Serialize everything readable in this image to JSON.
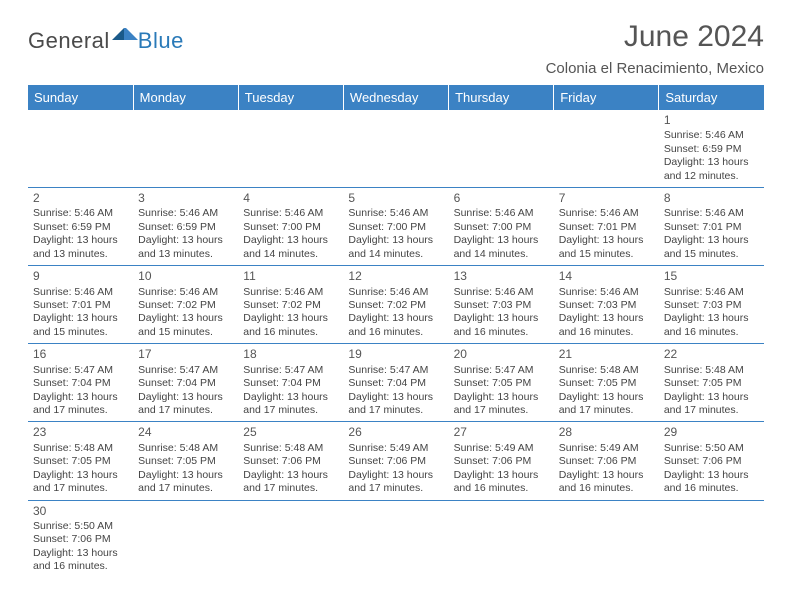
{
  "logo": {
    "text_a": "General",
    "text_b": "Blue"
  },
  "title": "June 2024",
  "subtitle": "Colonia el Renacimiento, Mexico",
  "header_bg": "#3b82c4",
  "header_fg": "#ffffff",
  "rule_color": "#3b82c4",
  "text_color": "#444444",
  "columns": [
    "Sunday",
    "Monday",
    "Tuesday",
    "Wednesday",
    "Thursday",
    "Friday",
    "Saturday"
  ],
  "weeks": [
    [
      null,
      null,
      null,
      null,
      null,
      null,
      {
        "n": "1",
        "sr": "5:46 AM",
        "ss": "6:59 PM",
        "dl": "13 hours and 12 minutes."
      }
    ],
    [
      {
        "n": "2",
        "sr": "5:46 AM",
        "ss": "6:59 PM",
        "dl": "13 hours and 13 minutes."
      },
      {
        "n": "3",
        "sr": "5:46 AM",
        "ss": "6:59 PM",
        "dl": "13 hours and 13 minutes."
      },
      {
        "n": "4",
        "sr": "5:46 AM",
        "ss": "7:00 PM",
        "dl": "13 hours and 14 minutes."
      },
      {
        "n": "5",
        "sr": "5:46 AM",
        "ss": "7:00 PM",
        "dl": "13 hours and 14 minutes."
      },
      {
        "n": "6",
        "sr": "5:46 AM",
        "ss": "7:00 PM",
        "dl": "13 hours and 14 minutes."
      },
      {
        "n": "7",
        "sr": "5:46 AM",
        "ss": "7:01 PM",
        "dl": "13 hours and 15 minutes."
      },
      {
        "n": "8",
        "sr": "5:46 AM",
        "ss": "7:01 PM",
        "dl": "13 hours and 15 minutes."
      }
    ],
    [
      {
        "n": "9",
        "sr": "5:46 AM",
        "ss": "7:01 PM",
        "dl": "13 hours and 15 minutes."
      },
      {
        "n": "10",
        "sr": "5:46 AM",
        "ss": "7:02 PM",
        "dl": "13 hours and 15 minutes."
      },
      {
        "n": "11",
        "sr": "5:46 AM",
        "ss": "7:02 PM",
        "dl": "13 hours and 16 minutes."
      },
      {
        "n": "12",
        "sr": "5:46 AM",
        "ss": "7:02 PM",
        "dl": "13 hours and 16 minutes."
      },
      {
        "n": "13",
        "sr": "5:46 AM",
        "ss": "7:03 PM",
        "dl": "13 hours and 16 minutes."
      },
      {
        "n": "14",
        "sr": "5:46 AM",
        "ss": "7:03 PM",
        "dl": "13 hours and 16 minutes."
      },
      {
        "n": "15",
        "sr": "5:46 AM",
        "ss": "7:03 PM",
        "dl": "13 hours and 16 minutes."
      }
    ],
    [
      {
        "n": "16",
        "sr": "5:47 AM",
        "ss": "7:04 PM",
        "dl": "13 hours and 17 minutes."
      },
      {
        "n": "17",
        "sr": "5:47 AM",
        "ss": "7:04 PM",
        "dl": "13 hours and 17 minutes."
      },
      {
        "n": "18",
        "sr": "5:47 AM",
        "ss": "7:04 PM",
        "dl": "13 hours and 17 minutes."
      },
      {
        "n": "19",
        "sr": "5:47 AM",
        "ss": "7:04 PM",
        "dl": "13 hours and 17 minutes."
      },
      {
        "n": "20",
        "sr": "5:47 AM",
        "ss": "7:05 PM",
        "dl": "13 hours and 17 minutes."
      },
      {
        "n": "21",
        "sr": "5:48 AM",
        "ss": "7:05 PM",
        "dl": "13 hours and 17 minutes."
      },
      {
        "n": "22",
        "sr": "5:48 AM",
        "ss": "7:05 PM",
        "dl": "13 hours and 17 minutes."
      }
    ],
    [
      {
        "n": "23",
        "sr": "5:48 AM",
        "ss": "7:05 PM",
        "dl": "13 hours and 17 minutes."
      },
      {
        "n": "24",
        "sr": "5:48 AM",
        "ss": "7:05 PM",
        "dl": "13 hours and 17 minutes."
      },
      {
        "n": "25",
        "sr": "5:48 AM",
        "ss": "7:06 PM",
        "dl": "13 hours and 17 minutes."
      },
      {
        "n": "26",
        "sr": "5:49 AM",
        "ss": "7:06 PM",
        "dl": "13 hours and 17 minutes."
      },
      {
        "n": "27",
        "sr": "5:49 AM",
        "ss": "7:06 PM",
        "dl": "13 hours and 16 minutes."
      },
      {
        "n": "28",
        "sr": "5:49 AM",
        "ss": "7:06 PM",
        "dl": "13 hours and 16 minutes."
      },
      {
        "n": "29",
        "sr": "5:50 AM",
        "ss": "7:06 PM",
        "dl": "13 hours and 16 minutes."
      }
    ],
    [
      {
        "n": "30",
        "sr": "5:50 AM",
        "ss": "7:06 PM",
        "dl": "13 hours and 16 minutes."
      },
      null,
      null,
      null,
      null,
      null,
      null
    ]
  ],
  "labels": {
    "sunrise": "Sunrise:",
    "sunset": "Sunset:",
    "daylight": "Daylight:"
  }
}
